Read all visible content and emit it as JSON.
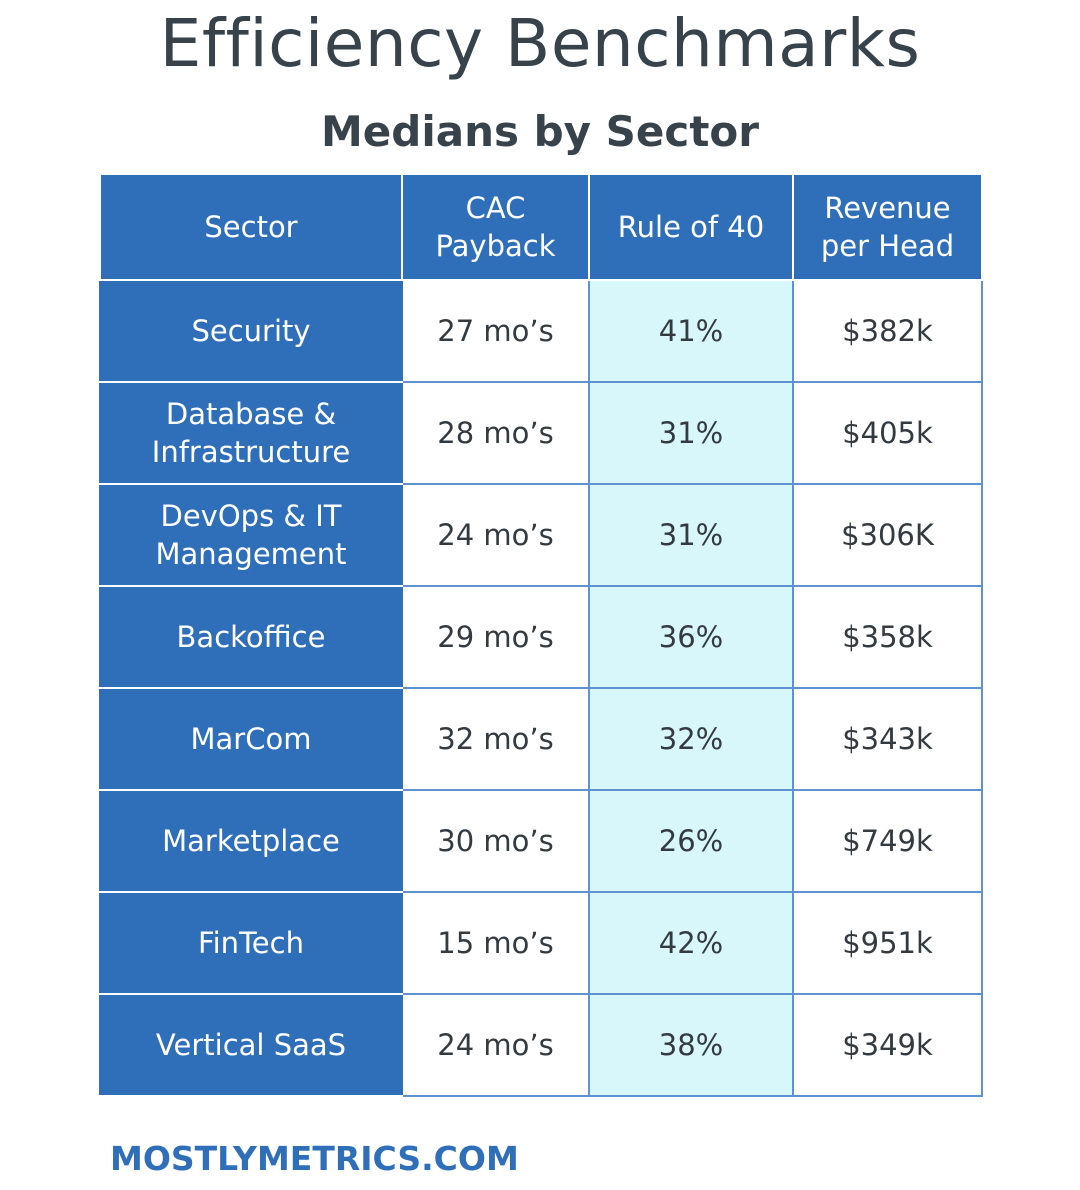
{
  "chart_data": {
    "type": "table",
    "title": "Efficiency Benchmarks",
    "subtitle": "Medians by Sector",
    "columns": [
      "Sector",
      "CAC Payback",
      "Rule of 40",
      "Revenue per Head"
    ],
    "header_lines": [
      [
        "Sector"
      ],
      [
        "CAC",
        "Payback"
      ],
      [
        "Rule of 40"
      ],
      [
        "Revenue",
        "per Head"
      ]
    ],
    "rows": [
      {
        "sector_lines": [
          "Security"
        ],
        "cac": "27 mo’s",
        "rule40": "41%",
        "revenue": "$382k"
      },
      {
        "sector_lines": [
          "Database &",
          "Infrastructure"
        ],
        "cac": "28 mo’s",
        "rule40": "31%",
        "revenue": "$405k"
      },
      {
        "sector_lines": [
          "DevOps & IT",
          "Management"
        ],
        "cac": "24 mo’s",
        "rule40": "31%",
        "revenue": "$306K"
      },
      {
        "sector_lines": [
          "Backoffice"
        ],
        "cac": "29 mo’s",
        "rule40": "36%",
        "revenue": "$358k"
      },
      {
        "sector_lines": [
          "MarCom"
        ],
        "cac": "32 mo’s",
        "rule40": "32%",
        "revenue": "$343k"
      },
      {
        "sector_lines": [
          "Marketplace"
        ],
        "cac": "30 mo’s",
        "rule40": "26%",
        "revenue": "$749k"
      },
      {
        "sector_lines": [
          "FinTech"
        ],
        "cac": "15 mo’s",
        "rule40": "42%",
        "revenue": "$951k"
      },
      {
        "sector_lines": [
          "Vertical SaaS"
        ],
        "cac": "24 mo’s",
        "rule40": "38%",
        "revenue": "$349k"
      }
    ]
  },
  "footer": "MOSTLYMETRICS.COM",
  "colors": {
    "header_blue": "#2f6fba",
    "rule_highlight": "#d8f7fb",
    "title_gray": "#37424a",
    "grid_line": "#5e93cf"
  }
}
